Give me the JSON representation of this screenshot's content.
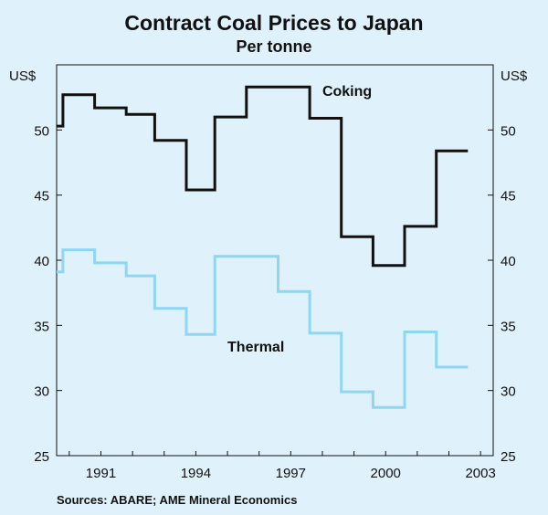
{
  "chart_data": {
    "type": "line",
    "title": "Contract Coal Prices to Japan",
    "subtitle": "Per tonne",
    "ylabel_left": "US$",
    "ylabel_right": "US$",
    "ylim": [
      25,
      55
    ],
    "yticks": [
      25,
      30,
      35,
      40,
      45,
      50
    ],
    "xlim": [
      1989.6,
      2003.4
    ],
    "xticks": [
      1991,
      1994,
      1997,
      2000,
      2003
    ],
    "grid": false,
    "series": [
      {
        "name": "Coking",
        "color": "#111111",
        "x": [
          1989.6,
          1989.8,
          1989.8,
          1990.8,
          1990.8,
          1991.8,
          1991.8,
          1992.7,
          1992.7,
          1993.7,
          1993.7,
          1994.6,
          1994.6,
          1995.6,
          1995.6,
          1997.6,
          1997.6,
          1998.6,
          1998.6,
          1999.6,
          1999.6,
          2000.6,
          2000.6,
          2001.6,
          2001.6,
          2002.6
        ],
        "values": [
          50.3,
          50.3,
          52.7,
          52.7,
          51.7,
          51.7,
          51.2,
          51.2,
          49.2,
          49.2,
          45.4,
          45.4,
          51.0,
          51.0,
          53.3,
          53.3,
          50.9,
          50.9,
          41.8,
          41.8,
          39.6,
          39.6,
          42.6,
          42.6,
          48.4,
          48.4
        ]
      },
      {
        "name": "Thermal",
        "color": "#8fd6f1",
        "x": [
          1989.6,
          1989.8,
          1989.8,
          1990.8,
          1990.8,
          1991.8,
          1991.8,
          1992.7,
          1992.7,
          1993.7,
          1993.7,
          1994.6,
          1994.6,
          1996.6,
          1996.6,
          1997.6,
          1997.6,
          1998.6,
          1998.6,
          1999.6,
          1999.6,
          2000.6,
          2000.6,
          2001.6,
          2001.6,
          2002.6
        ],
        "values": [
          39.1,
          39.1,
          40.8,
          40.8,
          39.8,
          39.8,
          38.8,
          38.8,
          36.3,
          36.3,
          34.3,
          34.3,
          40.3,
          40.3,
          37.6,
          37.6,
          34.4,
          34.4,
          29.9,
          29.9,
          28.7,
          28.7,
          34.5,
          34.5,
          31.8,
          31.8
        ]
      }
    ],
    "annotations": [
      {
        "text": "Coking",
        "x": 1998.0,
        "y": 52.6
      },
      {
        "text": "Thermal",
        "x": 1995.0,
        "y": 33.0
      }
    ],
    "source": "Sources: ABARE; AME Mineral Economics"
  }
}
